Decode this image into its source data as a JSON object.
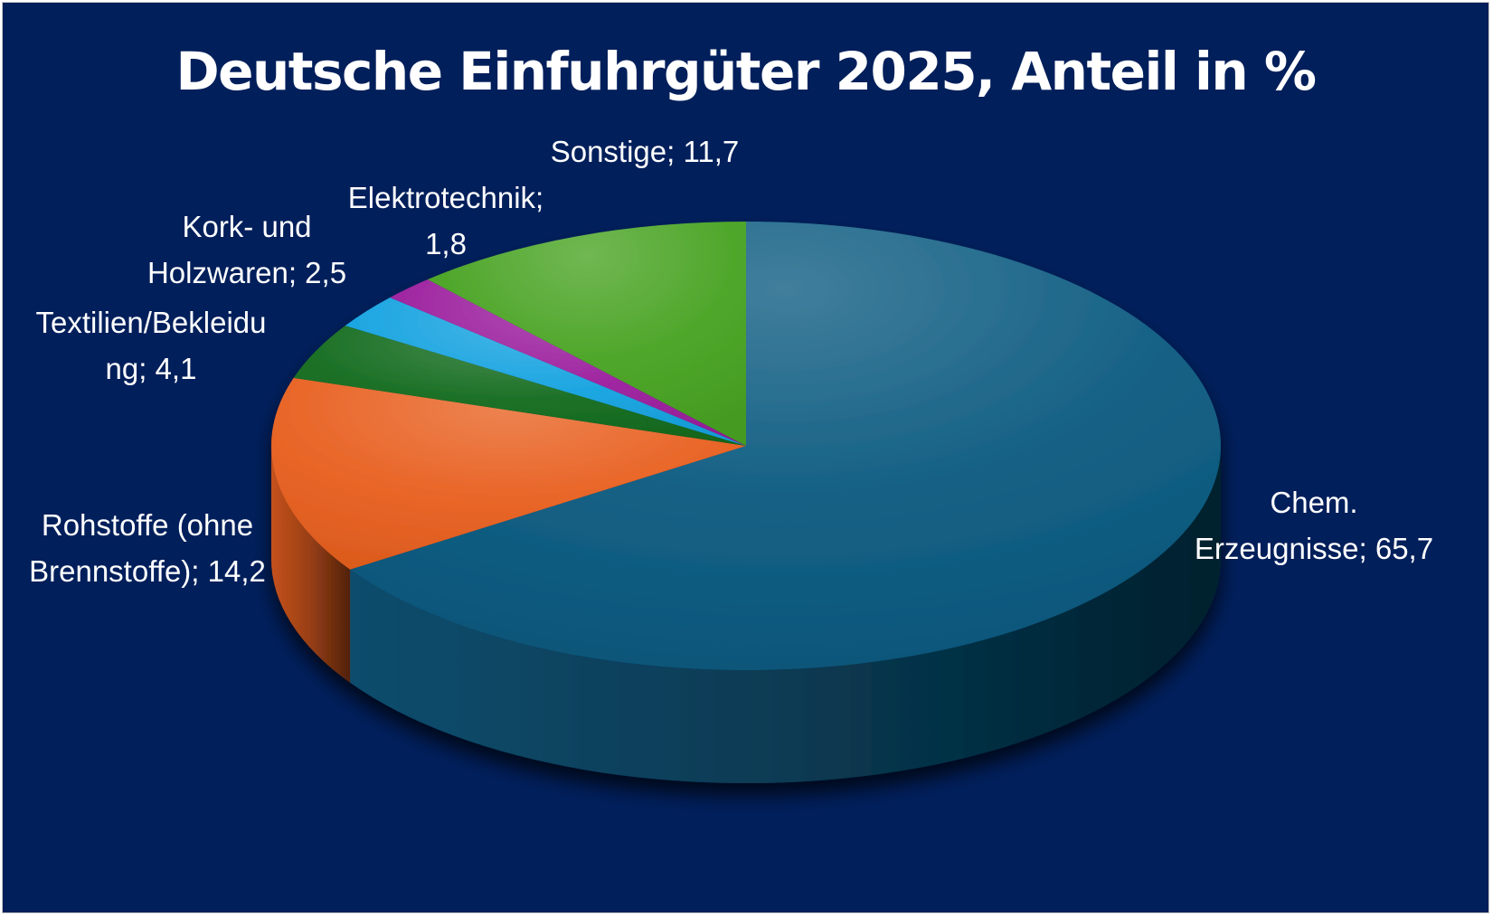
{
  "chart_data": {
    "type": "pie",
    "title": "Deutsche Einfuhrgüter 2025, Anteil in %",
    "start_angle_deg": 0,
    "direction": "clockwise",
    "style": "3d",
    "slices": [
      {
        "name": "Chem. Erzeugnisse",
        "value": 65.7,
        "label_lines": [
          "Chem.",
          "Erzeugnisse; 65,7"
        ],
        "color": "#0b5a80"
      },
      {
        "name": "Rohstoffe (ohne Brennstoffe)",
        "value": 14.2,
        "label_lines": [
          "Rohstoffe (ohne",
          "Brennstoffe); 14,2"
        ],
        "color": "#e86020"
      },
      {
        "name": "Textilien/Bekleidung",
        "value": 4.1,
        "label_lines": [
          "Textilien/Bekleidu",
          "ng; 4,1"
        ],
        "color": "#136b1e"
      },
      {
        "name": "Kork- und Holzwaren",
        "value": 2.5,
        "label_lines": [
          "Kork- und",
          "Holzwaren; 2,5"
        ],
        "color": "#16a3e0"
      },
      {
        "name": "Elektrotechnik",
        "value": 1.8,
        "label_lines": [
          "Elektrotechnik;",
          "1,8"
        ],
        "color": "#9c1f9e"
      },
      {
        "name": "Sonstige",
        "value": 11.7,
        "label_lines": [
          "Sonstige; 11,7"
        ],
        "color": "#48a322"
      }
    ]
  },
  "colors": {
    "background": "#011f5b",
    "text": "#ffffff"
  }
}
